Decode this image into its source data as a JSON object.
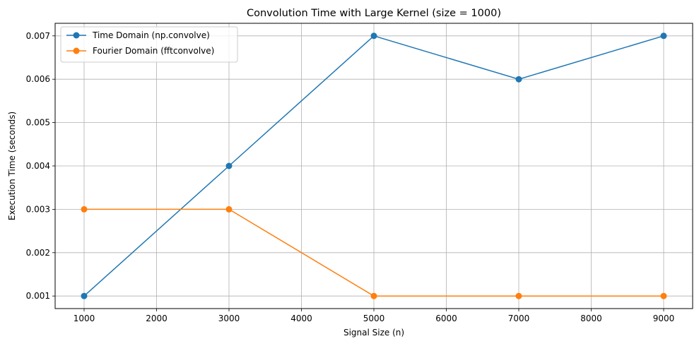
{
  "chart_data": {
    "type": "line",
    "title": "Convolution Time with Large Kernel (size = 1000)",
    "xlabel": "Signal Size (n)",
    "ylabel": "Execution Time (seconds)",
    "x": [
      1000,
      3000,
      5000,
      7000,
      9000
    ],
    "xlim": [
      600,
      9400
    ],
    "ylim": [
      0.00071,
      0.00729
    ],
    "xticks": [
      1000,
      2000,
      3000,
      4000,
      5000,
      6000,
      7000,
      8000,
      9000
    ],
    "yticks": [
      0.001,
      0.002,
      0.003,
      0.004,
      0.005,
      0.006,
      0.007
    ],
    "grid": true,
    "legend_position": "top-left",
    "series": [
      {
        "name": "Time Domain (np.convolve)",
        "color": "#1f77b4",
        "values": [
          0.001,
          0.004,
          0.007,
          0.006,
          0.007
        ]
      },
      {
        "name": "Fourier Domain (fftconvolve)",
        "color": "#ff7f0e",
        "values": [
          0.003,
          0.003,
          0.001,
          0.001,
          0.001
        ]
      }
    ]
  }
}
